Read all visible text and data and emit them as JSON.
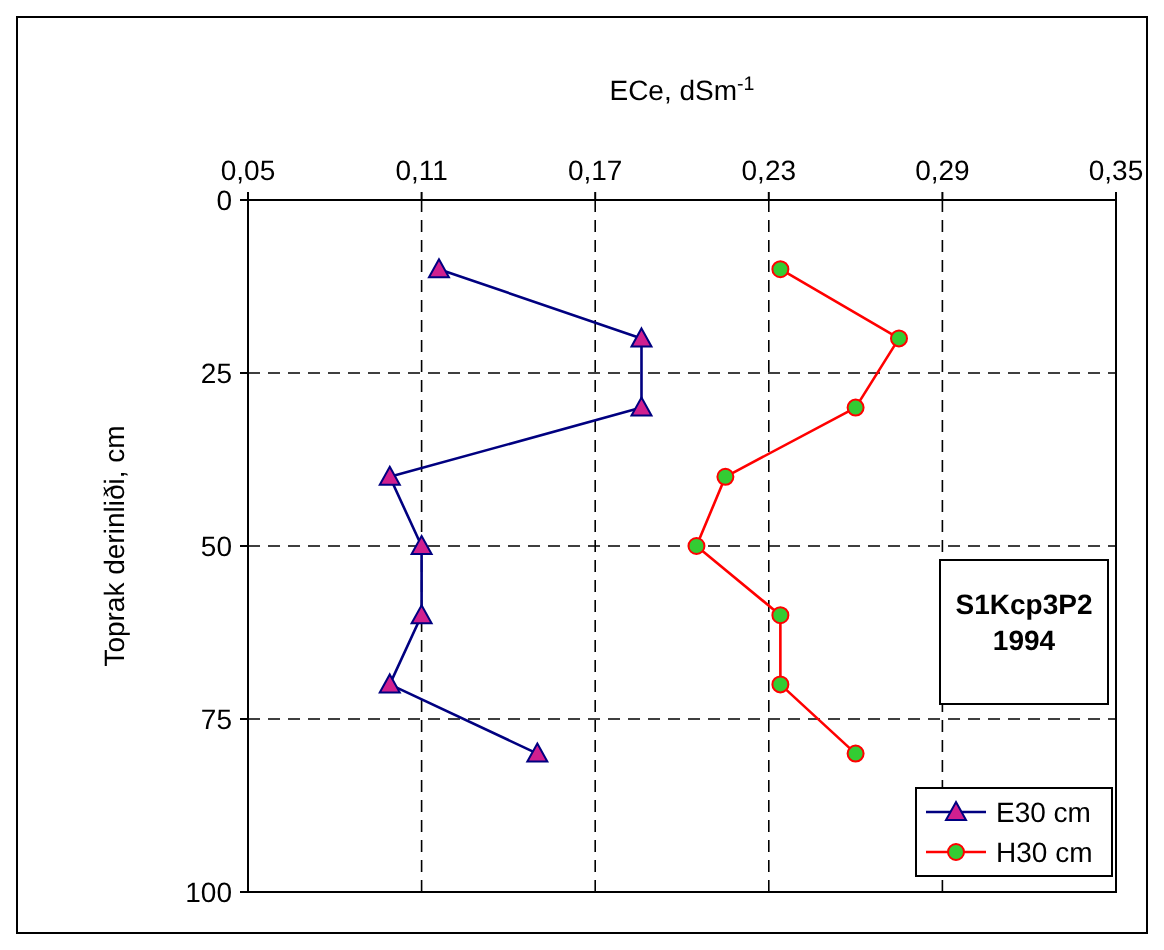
{
  "chart_data": {
    "type": "line",
    "xlabel": "ECe, dSm$^{-1}$",
    "ylabel": "Toprak derinliði, cm",
    "xlim": [
      0.05,
      0.35
    ],
    "xticks": [
      {
        "value": 0.05,
        "label": "0,05"
      },
      {
        "value": 0.11,
        "label": "0,11"
      },
      {
        "value": 0.17,
        "label": "0,17"
      },
      {
        "value": 0.23,
        "label": "0,23"
      },
      {
        "value": 0.29,
        "label": "0,29"
      },
      {
        "value": 0.35,
        "label": "0,35"
      }
    ],
    "ylim": [
      100,
      0
    ],
    "yticks": [
      0,
      25,
      50,
      75,
      100
    ],
    "grid": true,
    "legend": "bottom right",
    "annotations": [
      "S1Kcp3P2\n1994"
    ],
    "series": [
      {
        "name": "E30 cm",
        "color": "#000080",
        "marker": "triangle",
        "x": [
          0.116,
          0.186,
          0.186,
          0.099,
          0.11,
          0.11,
          0.099,
          0.15
        ],
        "values": [
          10,
          20,
          30,
          40,
          50,
          60,
          70,
          80
        ]
      },
      {
        "name": "H30 cm",
        "color": "#ff0000",
        "marker": "circle",
        "x": [
          0.234,
          0.275,
          0.26,
          0.215,
          0.205,
          0.234,
          0.234,
          0.26
        ],
        "values": [
          10,
          20,
          30,
          40,
          50,
          60,
          70,
          80
        ]
      }
    ]
  }
}
